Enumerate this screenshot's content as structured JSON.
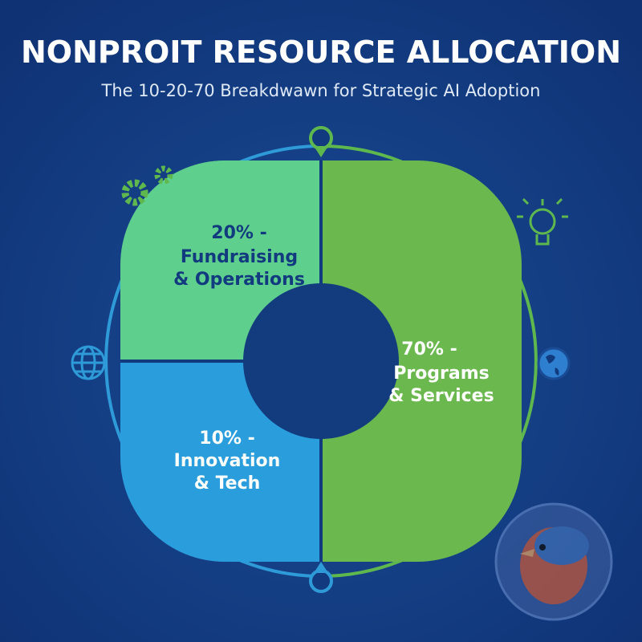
{
  "header": {
    "title": "NONPROIT RESOURCE ALLOCATION",
    "subtitle": "The 10-20-70 Breakdwawn for Strategic AI Adoption"
  },
  "segments": [
    {
      "lines": [
        "20% -",
        "Fundraising",
        "& Operations"
      ]
    },
    {
      "lines": [
        "10% -",
        "Innovation",
        "& Tech"
      ]
    },
    {
      "lines": [
        "70% -",
        "Programs",
        "& Services"
      ]
    }
  ]
}
